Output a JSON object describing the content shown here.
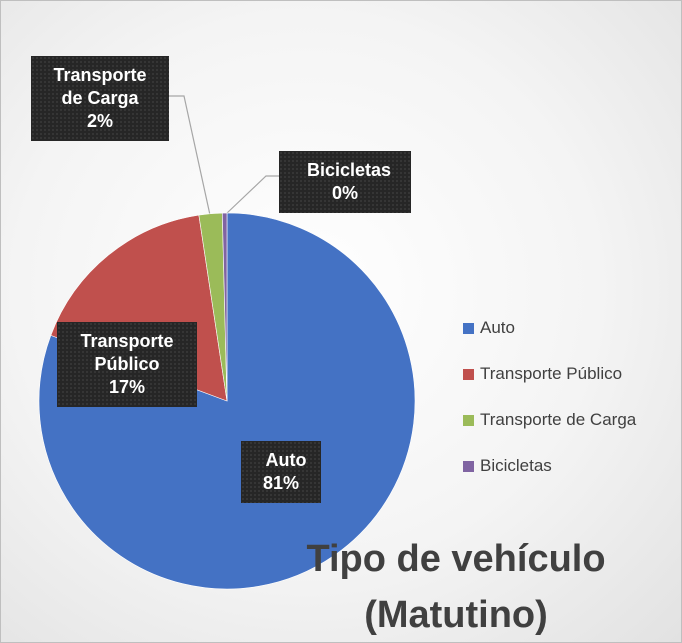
{
  "chart_data": {
    "type": "pie",
    "title": "Tipo de vehículo (Matutino)",
    "categories": [
      "Auto",
      "Transporte Público",
      "Transporte de Carga",
      "Bicicletas"
    ],
    "values": [
      81,
      17,
      2,
      0.4
    ],
    "value_labels": [
      "81%",
      "17%",
      "2%",
      "0%"
    ],
    "colors": [
      "#4472c4",
      "#c0504d",
      "#9bbb59",
      "#8064a2"
    ],
    "legend": "right"
  }
}
